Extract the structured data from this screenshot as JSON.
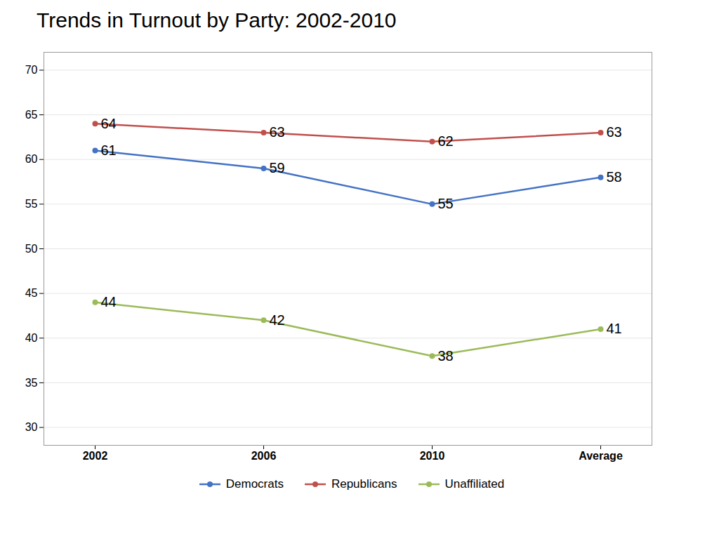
{
  "chart_data": {
    "type": "line",
    "title": "Trends in Turnout by Party: 2002-2010",
    "categories": [
      "2002",
      "2006",
      "2010",
      "Average"
    ],
    "series": [
      {
        "name": "Democrats",
        "color": "#4472C4",
        "marker": "circle",
        "values": [
          61,
          59,
          55,
          58
        ]
      },
      {
        "name": "Republicans",
        "color": "#C0504D",
        "marker": "circle",
        "values": [
          64,
          63,
          62,
          63
        ]
      },
      {
        "name": "Unaffiliated",
        "color": "#9BBB59",
        "marker": "circle",
        "values": [
          44,
          42,
          38,
          41
        ]
      }
    ],
    "ylim": [
      28,
      72
    ],
    "yticks": [
      30,
      35,
      40,
      45,
      50,
      55,
      60,
      65,
      70
    ],
    "grid": true,
    "data_labels": true,
    "legend": "bottom"
  }
}
